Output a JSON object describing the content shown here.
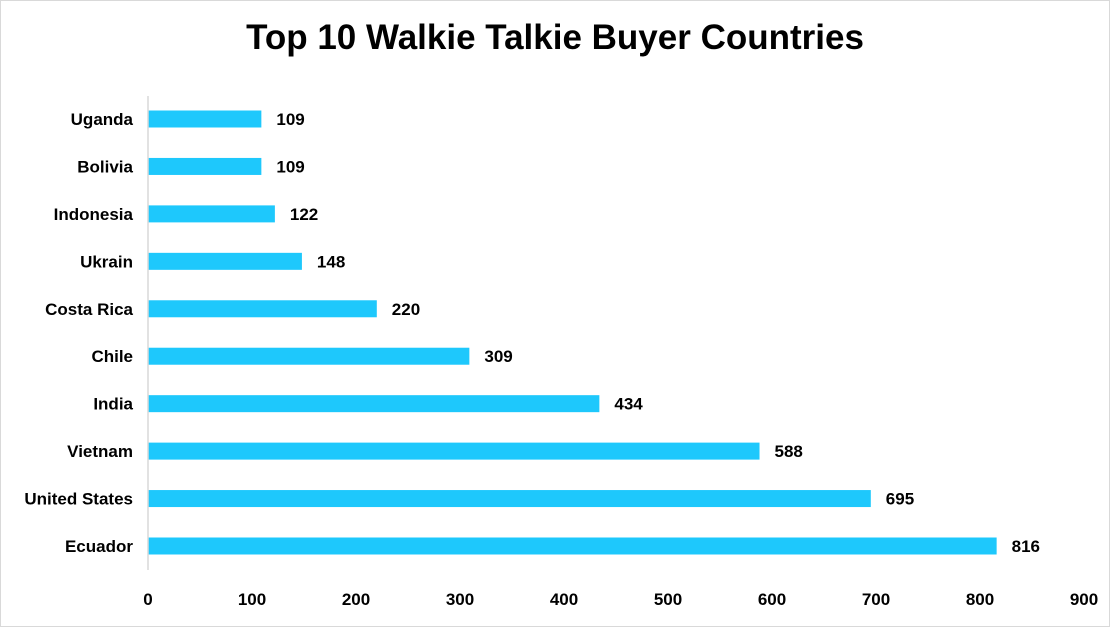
{
  "chart_data": {
    "type": "bar",
    "orientation": "horizontal",
    "title": "Top 10 Walkie Talkie Buyer Countries",
    "xlabel": "",
    "ylabel": "",
    "categories": [
      "Ecuador",
      "United States",
      "Vietnam",
      "India",
      "Chile",
      "Costa Rica",
      "Ukrain",
      "Indonesia",
      "Bolivia",
      "Uganda"
    ],
    "values": [
      816,
      695,
      588,
      434,
      309,
      220,
      148,
      122,
      109,
      109
    ],
    "xlim": [
      0,
      900
    ],
    "xticks": [
      0,
      100,
      200,
      300,
      400,
      500,
      600,
      700,
      800,
      900
    ],
    "grid": false,
    "legend": "none",
    "bar_color": "#1ec8fc",
    "axis_color": "#d9d9d9"
  }
}
